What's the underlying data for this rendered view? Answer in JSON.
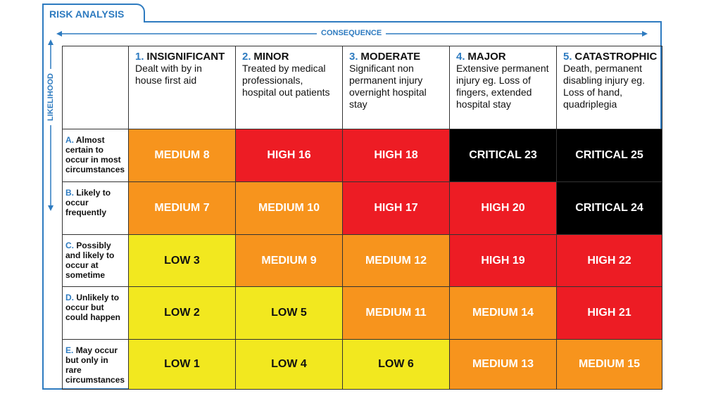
{
  "header": {
    "title": "RISK ANALYSIS"
  },
  "axes": {
    "x_label": "CONSEQUENCE",
    "y_label": "LIKELIHOOD"
  },
  "columns": [
    {
      "number": "1.",
      "name": "INSIGNIFICANT",
      "description": "Dealt with by in house first aid"
    },
    {
      "number": "2.",
      "name": "MINOR",
      "description": "Treated by medical professionals, hospital out patients"
    },
    {
      "number": "3.",
      "name": "MODERATE",
      "description": "Significant non permanent injury overnight hospital stay"
    },
    {
      "number": "4.",
      "name": "MAJOR",
      "description": "Extensive permanent injury  eg. Loss of fingers, extended hospital stay"
    },
    {
      "number": "5.",
      "name": "CATASTROPHIC",
      "description": "Death, permanent disabling injury eg. Loss of hand, quadriplegia"
    }
  ],
  "rows": [
    {
      "letter": "A.",
      "description": "Almost certain to occur in most circumstances",
      "cells": [
        {
          "text": "MEDIUM 8",
          "color": "#f7941d"
        },
        {
          "text": "HIGH 16",
          "color": "#ed1c24"
        },
        {
          "text": "HIGH 18",
          "color": "#ed1c24"
        },
        {
          "text": "CRITICAL 23",
          "color": "#000000"
        },
        {
          "text": "CRITICAL 25",
          "color": "#000000"
        }
      ]
    },
    {
      "letter": "B.",
      "description": "Likely to occur frequently",
      "cells": [
        {
          "text": "MEDIUM 7",
          "color": "#f7941d"
        },
        {
          "text": "MEDIUM 10",
          "color": "#f7941d"
        },
        {
          "text": "HIGH 17",
          "color": "#ed1c24"
        },
        {
          "text": "HIGH 20",
          "color": "#ed1c24"
        },
        {
          "text": "CRITICAL 24",
          "color": "#000000"
        }
      ]
    },
    {
      "letter": "C.",
      "description": "Possibly and likely to occur at sometime",
      "cells": [
        {
          "text": "LOW 3",
          "color": "#f2e81f"
        },
        {
          "text": "MEDIUM 9",
          "color": "#f7941d"
        },
        {
          "text": "MEDIUM 12",
          "color": "#f7941d"
        },
        {
          "text": "HIGH 19",
          "color": "#ed1c24"
        },
        {
          "text": "HIGH 22",
          "color": "#ed1c24"
        }
      ]
    },
    {
      "letter": "D.",
      "description": "Unlikely to occur but could happen",
      "cells": [
        {
          "text": "LOW 2",
          "color": "#f2e81f"
        },
        {
          "text": "LOW 5",
          "color": "#f2e81f"
        },
        {
          "text": "MEDIUM 11",
          "color": "#f7941d"
        },
        {
          "text": "MEDIUM 14",
          "color": "#f7941d"
        },
        {
          "text": "HIGH 21",
          "color": "#ed1c24"
        }
      ]
    },
    {
      "letter": "E.",
      "description": "May occur but only in rare circumstances",
      "cells": [
        {
          "text": "LOW 1",
          "color": "#f2e81f"
        },
        {
          "text": "LOW 4",
          "color": "#f2e81f"
        },
        {
          "text": "LOW 6",
          "color": "#f2e81f"
        },
        {
          "text": "MEDIUM 13",
          "color": "#f7941d"
        },
        {
          "text": "MEDIUM 15",
          "color": "#f7941d"
        }
      ]
    }
  ]
}
